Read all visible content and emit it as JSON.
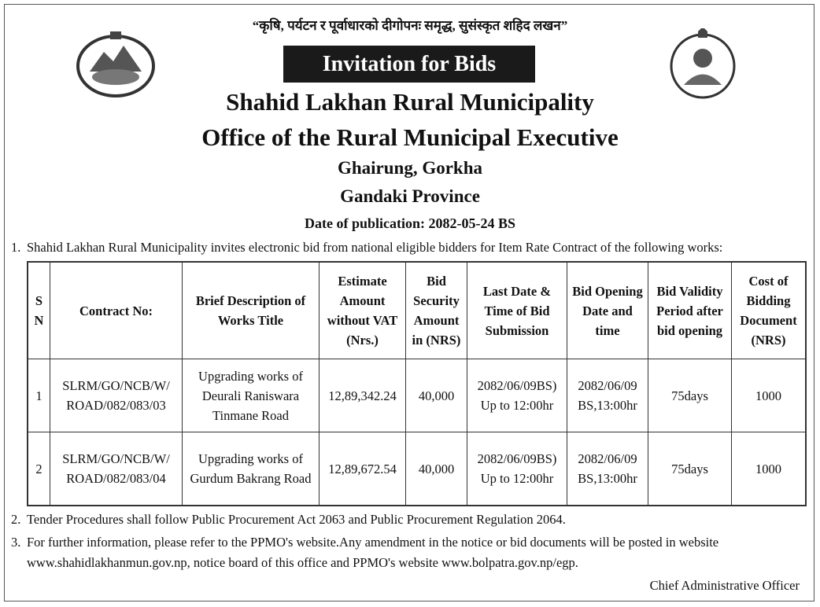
{
  "header": {
    "slogan": "“कृषि, पर्यटन र पूर्वाधारको दीगोपनः समृद्ध, सुसंस्कृत शहिद लखन”",
    "banner": "Invitation for Bids",
    "title": "Shahid Lakhan Rural Municipality",
    "office": "Office of the Rural Municipal Executive",
    "location": "Ghairung, Gorkha",
    "province": "Gandaki Province",
    "date": "Date of publication: 2082-05-24 BS"
  },
  "intro": {
    "number": "1.",
    "text": "Shahid Lakhan Rural Municipality invites electronic bid from national eligible bidders for Item Rate Contract of the following works:"
  },
  "table": {
    "columns": [
      "S N",
      "Contract No:",
      "Brief Description of Works Title",
      "Estimate Amount without VAT (Nrs.)",
      "Bid Security Amount in (NRS)",
      "Last Date & Time of Bid Submission",
      "Bid Opening Date and time",
      "Bid Validity Period after bid opening",
      "Cost of Bidding Document (NRS)"
    ],
    "rows": [
      [
        "1",
        "SLRM/GO/NCB/W/ ROAD/082/083/03",
        "Upgrading works of Deurali Raniswara Tinmane Road",
        "12,89,342.24",
        "40,000",
        "2082/06/09BS) Up to 12:00hr",
        "2082/06/09 BS,13:00hr",
        "75days",
        "1000"
      ],
      [
        "2",
        "SLRM/GO/NCB/W/ ROAD/082/083/04",
        "Upgrading works of Gurdum Bakrang Road",
        "12,89,672.54",
        "40,000",
        "2082/06/09BS) Up to 12:00hr",
        "2082/06/09 BS,13:00hr",
        "75days",
        "1000"
      ]
    ]
  },
  "notes": [
    {
      "number": "2.",
      "text": "Tender Procedures shall follow Public Procurement Act 2063 and Public Procurement Regulation 2064."
    },
    {
      "number": "3.",
      "text": "For further information, please refer to the PPMO's website.Any amendment in the notice or bid documents will be posted in website www.shahidlakhanmun.gov.np, notice board of this office and PPMO's website www.bolpatra.gov.np/egp."
    }
  ],
  "signature": "Chief Administrative Officer"
}
